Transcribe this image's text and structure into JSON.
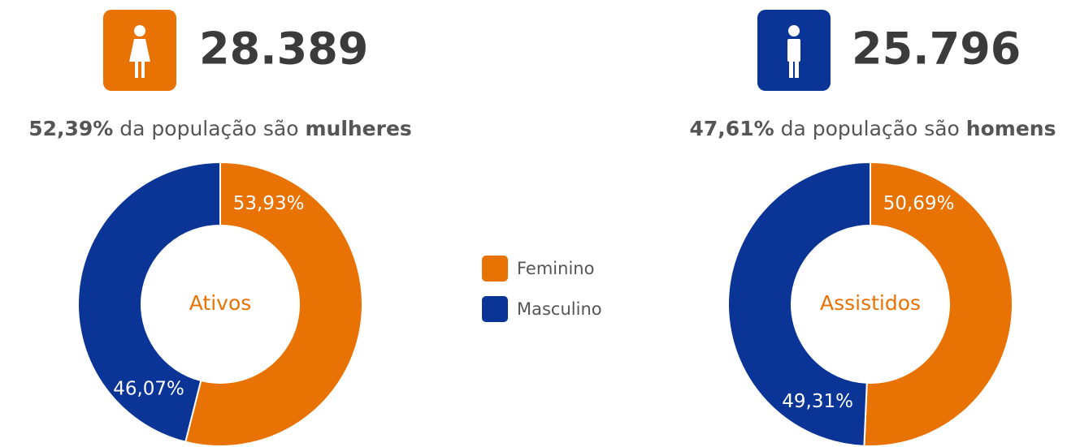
{
  "stats": [
    {
      "count": "28.389",
      "share": "52,39%",
      "text": "da população são",
      "group": "mulheres"
    },
    {
      "count": "25.796",
      "share": "47,61%",
      "text": "da população são",
      "group": "homens"
    }
  ],
  "chart_data": [
    {
      "type": "donut",
      "title": "Ativos",
      "categories": [
        "Feminino",
        "Masculino"
      ],
      "values": [
        53.93,
        46.07
      ],
      "value_labels": [
        "53,93%",
        "46,07%"
      ],
      "colors": [
        "#e87203",
        "#0a3597"
      ]
    },
    {
      "type": "donut",
      "title": "Assistidos",
      "categories": [
        "Feminino",
        "Masculino"
      ],
      "values": [
        50.69,
        49.31
      ],
      "value_labels": [
        "50,69%",
        "49,31%"
      ],
      "colors": [
        "#e87203",
        "#0a3597"
      ]
    }
  ]
}
